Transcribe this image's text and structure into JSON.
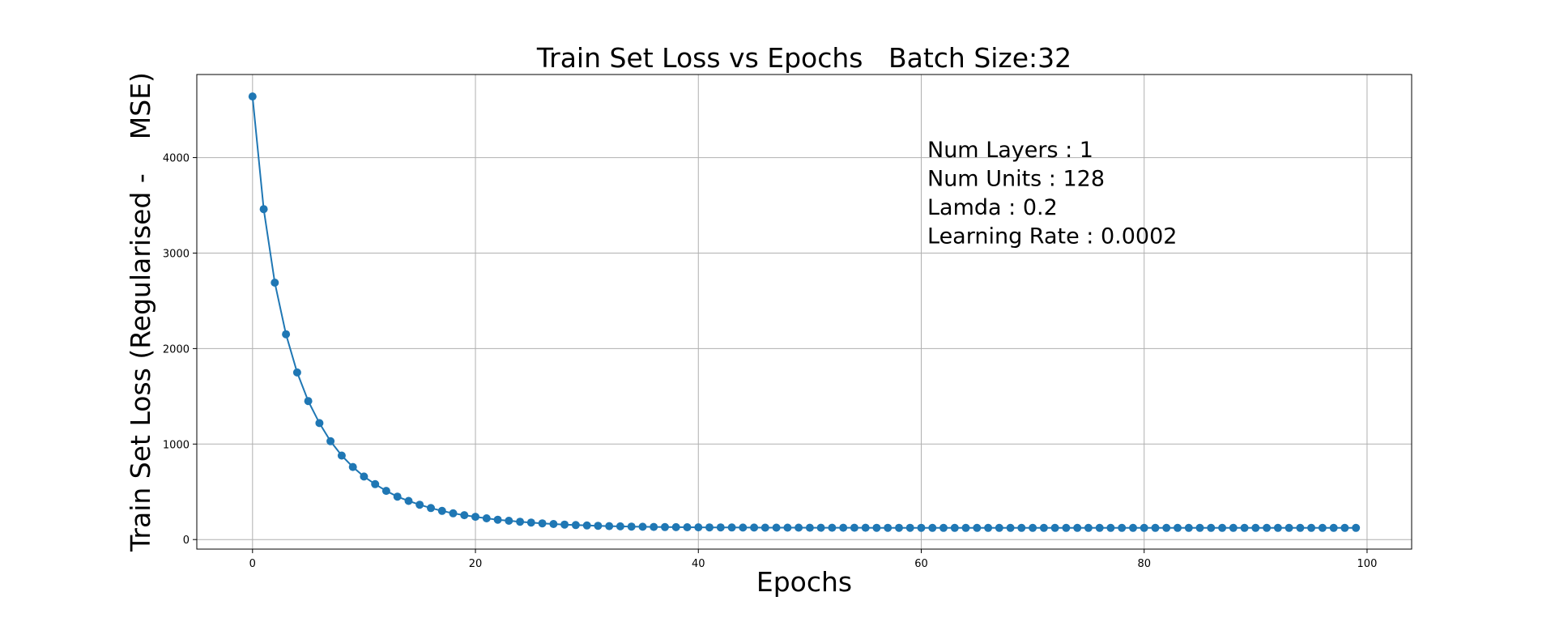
{
  "chart_data": {
    "type": "line",
    "title": "Train Set Loss vs Epochs   Batch Size:32",
    "xlabel": "Epochs",
    "ylabel": "Train Set Loss (Regularised -    MSE)",
    "xlim": [
      -5,
      104
    ],
    "ylim": [
      -100,
      4870
    ],
    "xticks": [
      0,
      20,
      40,
      60,
      80,
      100
    ],
    "yticks": [
      0,
      1000,
      2000,
      3000,
      4000
    ],
    "grid": true,
    "series_color": "#1f77b4",
    "annotations": [
      "Num Layers : 1",
      "Num Units : 128",
      "Lamda : 0.2",
      "Learning Rate : 0.0002"
    ],
    "series": [
      {
        "x": [
          0,
          1,
          2,
          3,
          4,
          5,
          6,
          7,
          8,
          9,
          10,
          11,
          12,
          13,
          14,
          15,
          16,
          17,
          18,
          19,
          20,
          21,
          22,
          23,
          24,
          25,
          26,
          27,
          28,
          29,
          30,
          31,
          32,
          33,
          34,
          35,
          36,
          37,
          38,
          39,
          40,
          41,
          42,
          43,
          44,
          45,
          46,
          47,
          48,
          49,
          50,
          51,
          52,
          53,
          54,
          55,
          56,
          57,
          58,
          59,
          60,
          61,
          62,
          63,
          64,
          65,
          66,
          67,
          68,
          69,
          70,
          71,
          72,
          73,
          74,
          75,
          76,
          77,
          78,
          79,
          80,
          81,
          82,
          83,
          84,
          85,
          86,
          87,
          88,
          89,
          90,
          91,
          92,
          93,
          94,
          95,
          96,
          97,
          98,
          99
        ],
        "values": [
          4640,
          3460,
          2690,
          2150,
          1750,
          1450,
          1220,
          1030,
          880,
          760,
          660,
          580,
          510,
          450,
          405,
          365,
          330,
          300,
          275,
          255,
          238,
          222,
          208,
          197,
          187,
          178,
          170,
          163,
          157,
          152,
          148,
          144,
          141,
          138,
          136,
          134,
          132,
          131,
          130,
          129,
          128,
          127.5,
          127,
          126.5,
          126,
          125.5,
          125,
          125,
          124.5,
          124.5,
          124,
          124,
          124,
          123.5,
          123.5,
          123.5,
          123,
          123,
          123,
          123,
          123,
          122.5,
          122.5,
          122.5,
          122.5,
          122.5,
          122.5,
          122,
          122,
          122,
          122,
          122,
          122,
          122,
          122,
          122,
          122,
          122,
          122,
          122,
          122,
          122,
          122,
          122,
          122,
          122,
          122,
          122,
          122,
          122,
          122,
          122,
          122,
          122,
          122,
          122,
          122,
          122,
          122,
          122
        ]
      }
    ]
  }
}
